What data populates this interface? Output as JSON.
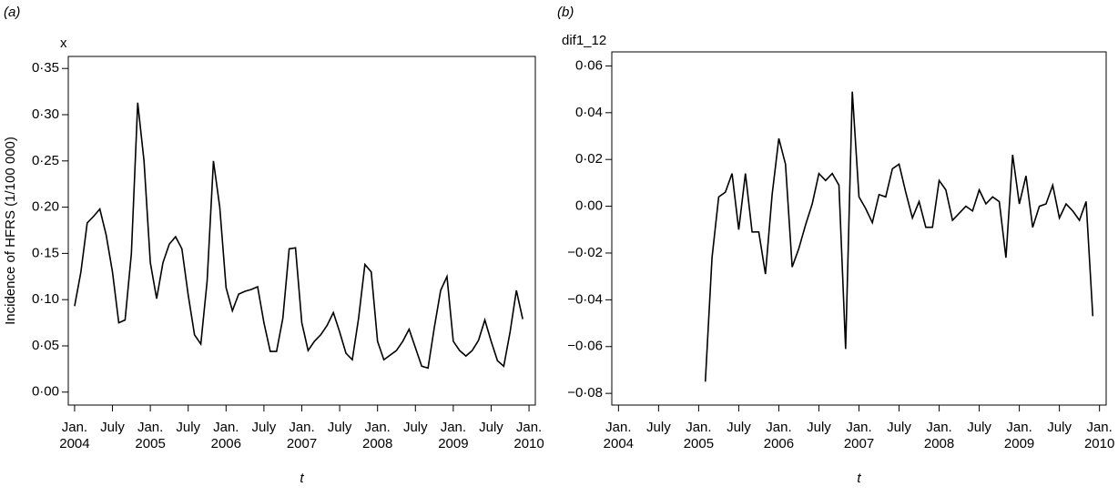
{
  "chart_data": [
    {
      "type": "line",
      "panel": "(a)",
      "y_axis_title": "Incidence of HFRS (1/100 000)",
      "y_top_label": "x",
      "x_axis_label": "t",
      "x": [
        "2004-01",
        "2004-02",
        "2004-03",
        "2004-04",
        "2004-05",
        "2004-06",
        "2004-07",
        "2004-08",
        "2004-09",
        "2004-10",
        "2004-11",
        "2004-12",
        "2005-01",
        "2005-02",
        "2005-03",
        "2005-04",
        "2005-05",
        "2005-06",
        "2005-07",
        "2005-08",
        "2005-09",
        "2005-10",
        "2005-11",
        "2005-12",
        "2006-01",
        "2006-02",
        "2006-03",
        "2006-04",
        "2006-05",
        "2006-06",
        "2006-07",
        "2006-08",
        "2006-09",
        "2006-10",
        "2006-11",
        "2006-12",
        "2007-01",
        "2007-02",
        "2007-03",
        "2007-04",
        "2007-05",
        "2007-06",
        "2007-07",
        "2007-08",
        "2007-09",
        "2007-10",
        "2007-11",
        "2007-12",
        "2008-01",
        "2008-02",
        "2008-03",
        "2008-04",
        "2008-05",
        "2008-06",
        "2008-07",
        "2008-08",
        "2008-09",
        "2008-10",
        "2008-11",
        "2008-12",
        "2009-01",
        "2009-02",
        "2009-03",
        "2009-04",
        "2009-05",
        "2009-06",
        "2009-07",
        "2009-08",
        "2009-09",
        "2009-10",
        "2009-11",
        "2009-12"
      ],
      "series": [
        {
          "color": "#000000",
          "values": [
            0.093,
            0.13,
            0.183,
            0.19,
            0.198,
            0.17,
            0.13,
            0.075,
            0.078,
            0.15,
            0.313,
            0.25,
            0.14,
            0.101,
            0.14,
            0.16,
            0.168,
            0.155,
            0.105,
            0.062,
            0.052,
            0.12,
            0.25,
            0.2,
            0.113,
            0.088,
            0.106,
            0.109,
            0.111,
            0.114,
            0.075,
            0.044,
            0.044,
            0.08,
            0.155,
            0.156,
            0.075,
            0.045,
            0.055,
            0.062,
            0.072,
            0.086,
            0.065,
            0.042,
            0.035,
            0.08,
            0.138,
            0.13,
            0.055,
            0.035,
            0.04,
            0.045,
            0.055,
            0.068,
            0.048,
            0.028,
            0.026,
            0.07,
            0.11,
            0.125,
            0.055,
            0.045,
            0.039,
            0.045,
            0.056,
            0.078,
            0.055,
            0.034,
            0.028,
            0.065,
            0.11,
            0.079
          ]
        }
      ],
      "xlim": [
        "2003-12",
        "2010-02"
      ],
      "xticks": [
        {
          "value": "2004-01",
          "label": [
            "Jan.",
            "2004"
          ]
        },
        {
          "value": "2004-07",
          "label": [
            "July"
          ]
        },
        {
          "value": "2005-01",
          "label": [
            "Jan.",
            "2005"
          ]
        },
        {
          "value": "2005-07",
          "label": [
            "July"
          ]
        },
        {
          "value": "2006-01",
          "label": [
            "Jan.",
            "2006"
          ]
        },
        {
          "value": "2006-07",
          "label": [
            "July"
          ]
        },
        {
          "value": "2007-01",
          "label": [
            "Jan.",
            "2007"
          ]
        },
        {
          "value": "2007-07",
          "label": [
            "July"
          ]
        },
        {
          "value": "2008-01",
          "label": [
            "Jan.",
            "2008"
          ]
        },
        {
          "value": "2008-07",
          "label": [
            "July"
          ]
        },
        {
          "value": "2009-01",
          "label": [
            "Jan.",
            "2009"
          ]
        },
        {
          "value": "2009-07",
          "label": [
            "July"
          ]
        },
        {
          "value": "2010-01",
          "label": [
            "Jan.",
            "2010"
          ]
        }
      ],
      "ylim": [
        -0.014,
        0.363
      ],
      "yticks": [
        {
          "value": 0,
          "label": "0·00"
        },
        {
          "value": 0.05,
          "label": "0·05"
        },
        {
          "value": 0.1,
          "label": "0·10"
        },
        {
          "value": 0.15,
          "label": "0·15"
        },
        {
          "value": 0.2,
          "label": "0·20"
        },
        {
          "value": 0.25,
          "label": "0·25"
        },
        {
          "value": 0.3,
          "label": "0·30"
        },
        {
          "value": 0.35,
          "label": "0·35"
        }
      ]
    },
    {
      "type": "line",
      "panel": "(b)",
      "y_top_label": "dif1_12",
      "x_axis_label": "t",
      "x": [
        "2005-02",
        "2005-03",
        "2005-04",
        "2005-05",
        "2005-06",
        "2005-07",
        "2005-08",
        "2005-09",
        "2005-10",
        "2005-11",
        "2005-12",
        "2006-01",
        "2006-02",
        "2006-03",
        "2006-04",
        "2006-05",
        "2006-06",
        "2006-07",
        "2006-08",
        "2006-09",
        "2006-10",
        "2006-11",
        "2006-12",
        "2007-01",
        "2007-02",
        "2007-03",
        "2007-04",
        "2007-05",
        "2007-06",
        "2007-07",
        "2007-08",
        "2007-09",
        "2007-10",
        "2007-11",
        "2007-12",
        "2008-01",
        "2008-02",
        "2008-03",
        "2008-04",
        "2008-05",
        "2008-06",
        "2008-07",
        "2008-08",
        "2008-09",
        "2008-10",
        "2008-11",
        "2008-12",
        "2009-01",
        "2009-02",
        "2009-03",
        "2009-04",
        "2009-05",
        "2009-06",
        "2009-07",
        "2009-08",
        "2009-09",
        "2009-10",
        "2009-11",
        "2009-12"
      ],
      "series": [
        {
          "color": "#000000",
          "values": [
            -0.075,
            -0.022,
            0.004,
            0.006,
            0.014,
            -0.01,
            0.014,
            -0.011,
            -0.011,
            -0.029,
            0.005,
            0.029,
            0.018,
            -0.026,
            -0.018,
            -0.008,
            0.001,
            0.014,
            0.011,
            0.014,
            0.009,
            -0.061,
            0.049,
            0.004,
            -0.001,
            -0.007,
            0.005,
            0.004,
            0.016,
            0.018,
            0.006,
            -0.005,
            0.002,
            -0.009,
            -0.009,
            0.011,
            0.007,
            -0.006,
            -0.003,
            0,
            -0.002,
            0.007,
            0.001,
            0.004,
            0.002,
            -0.022,
            0.022,
            0.001,
            0.013,
            -0.009,
            0,
            0.001,
            0.009,
            -0.005,
            0.001,
            -0.002,
            -0.006,
            0.002,
            -0.047
          ]
        }
      ],
      "xlim": [
        "2003-12",
        "2010-02"
      ],
      "xticks": [
        {
          "value": "2004-01",
          "label": [
            "Jan.",
            "2004"
          ]
        },
        {
          "value": "2004-07",
          "label": [
            "July"
          ]
        },
        {
          "value": "2005-01",
          "label": [
            "Jan.",
            "2005"
          ]
        },
        {
          "value": "2005-07",
          "label": [
            "July"
          ]
        },
        {
          "value": "2006-01",
          "label": [
            "Jan.",
            "2006"
          ]
        },
        {
          "value": "2006-07",
          "label": [
            "July"
          ]
        },
        {
          "value": "2007-01",
          "label": [
            "Jan.",
            "2007"
          ]
        },
        {
          "value": "2007-07",
          "label": [
            "July"
          ]
        },
        {
          "value": "2008-01",
          "label": [
            "Jan.",
            "2008"
          ]
        },
        {
          "value": "2008-07",
          "label": [
            "July"
          ]
        },
        {
          "value": "2009-01",
          "label": [
            "Jan.",
            "2009"
          ]
        },
        {
          "value": "2009-07",
          "label": [
            "July"
          ]
        },
        {
          "value": "2010-01",
          "label": [
            "Jan.",
            "2010"
          ]
        }
      ],
      "ylim": [
        -0.085,
        0.066
      ],
      "yticks": [
        {
          "value": -0.08,
          "label": "−0·08"
        },
        {
          "value": -0.06,
          "label": "−0·06"
        },
        {
          "value": -0.04,
          "label": "−0·04"
        },
        {
          "value": -0.02,
          "label": "−0·02"
        },
        {
          "value": 0,
          "label": "0·00"
        },
        {
          "value": 0.02,
          "label": "0·02"
        },
        {
          "value": 0.04,
          "label": "0·04"
        },
        {
          "value": 0.06,
          "label": "0·06"
        }
      ]
    }
  ]
}
